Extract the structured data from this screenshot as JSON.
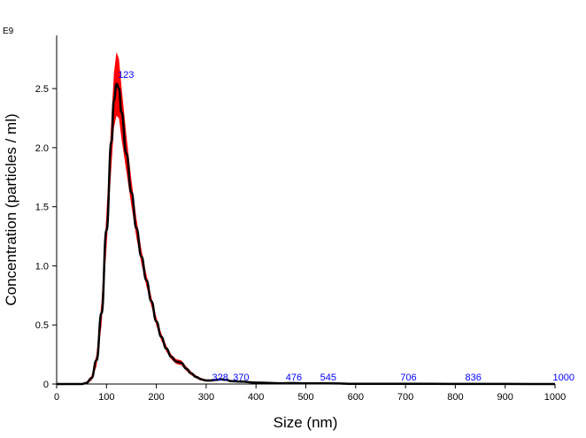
{
  "chart_data": {
    "type": "line",
    "exponent_label": "E9",
    "xlabel": "Size (nm)",
    "ylabel": "Concentration (particles / ml)",
    "xlim": [
      0,
      1000
    ],
    "ylim": [
      0,
      2.95
    ],
    "x_ticks": [
      "0",
      "100",
      "200",
      "300",
      "400",
      "500",
      "600",
      "700",
      "800",
      "900",
      "1000"
    ],
    "y_ticks": [
      "0",
      "0.5",
      "1.0",
      "1.5",
      "2.0",
      "2.5"
    ],
    "series": [
      {
        "color": "#000000",
        "band_color": "#ff0000",
        "x": [
          0,
          50,
          60,
          70,
          80,
          90,
          100,
          110,
          115,
          120,
          125,
          130,
          140,
          150,
          160,
          170,
          180,
          190,
          200,
          210,
          220,
          230,
          240,
          250,
          260,
          270,
          280,
          290,
          300,
          310,
          320,
          330,
          340,
          350,
          370,
          400,
          450,
          476,
          500,
          545,
          600,
          700,
          800,
          900,
          1000
        ],
        "y": [
          0,
          0,
          0.01,
          0.05,
          0.2,
          0.6,
          1.3,
          2.05,
          2.4,
          2.54,
          2.5,
          2.3,
          1.95,
          1.62,
          1.32,
          1.08,
          0.88,
          0.7,
          0.53,
          0.4,
          0.3,
          0.23,
          0.19,
          0.18,
          0.13,
          0.09,
          0.06,
          0.04,
          0.03,
          0.03,
          0.035,
          0.04,
          0.035,
          0.025,
          0.02,
          0.012,
          0.006,
          0.008,
          0.005,
          0.006,
          0.002,
          0.002,
          0.001,
          0.0005,
          0
        ],
        "band_halfwidth": [
          0,
          0,
          0.01,
          0.02,
          0.05,
          0.1,
          0.15,
          0.2,
          0.23,
          0.27,
          0.25,
          0.22,
          0.15,
          0.11,
          0.08,
          0.06,
          0.05,
          0.04,
          0.035,
          0.03,
          0.025,
          0.02,
          0.02,
          0.02,
          0.018,
          0.015,
          0.012,
          0.01,
          0.008,
          0.008,
          0.008,
          0.008,
          0.008,
          0.006,
          0.005,
          0.004,
          0.003,
          0.003,
          0.003,
          0.003,
          0.002,
          0.002,
          0.001,
          0.001,
          0
        ]
      }
    ],
    "peak_labels": [
      {
        "text": "123",
        "x": 123,
        "y": 2.54
      },
      {
        "text": "328",
        "x": 328,
        "y": 0.04
      },
      {
        "text": "370",
        "x": 370,
        "y": 0.02
      },
      {
        "text": "476",
        "x": 476,
        "y": 0.008
      },
      {
        "text": "545",
        "x": 545,
        "y": 0.006
      },
      {
        "text": "706",
        "x": 706,
        "y": 0.002
      },
      {
        "text": "836",
        "x": 836,
        "y": 0.001
      },
      {
        "text": "1000",
        "x": 1000,
        "y": 0
      }
    ],
    "peak_label_color": "#0000ff",
    "grid": false
  }
}
